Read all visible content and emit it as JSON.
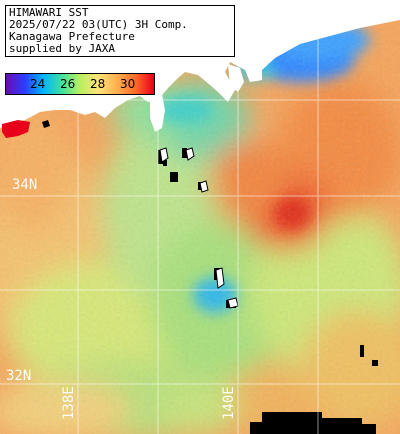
{
  "header": {
    "line1": "HIMAWARI SST",
    "line2": "2025/07/22 03(UTC) 3H Comp.",
    "line3": "Kanagawa Prefecture",
    "line4": "supplied by JAXA"
  },
  "colorbar": {
    "ticks": [
      "24",
      "26",
      "28",
      "30"
    ],
    "colors": [
      "#6a0dad",
      "#2d3cff",
      "#00b4ff",
      "#3fe0a0",
      "#b8f060",
      "#ffe27a",
      "#ffb050",
      "#ff6a2a",
      "#e8001a"
    ]
  },
  "grid_labels": {
    "lat_34": "34N",
    "lat_32": "32N",
    "lon_138": "138E",
    "lon_140": "140E"
  },
  "colors": {
    "land": "#ffffff",
    "missing": "#000000",
    "gridline": "#ffffff",
    "sea_warm": "#f7a052",
    "sea_hot": "#ea3b1e",
    "sea_cool": "#2a8cff",
    "sea_mid": "#a8e070"
  }
}
